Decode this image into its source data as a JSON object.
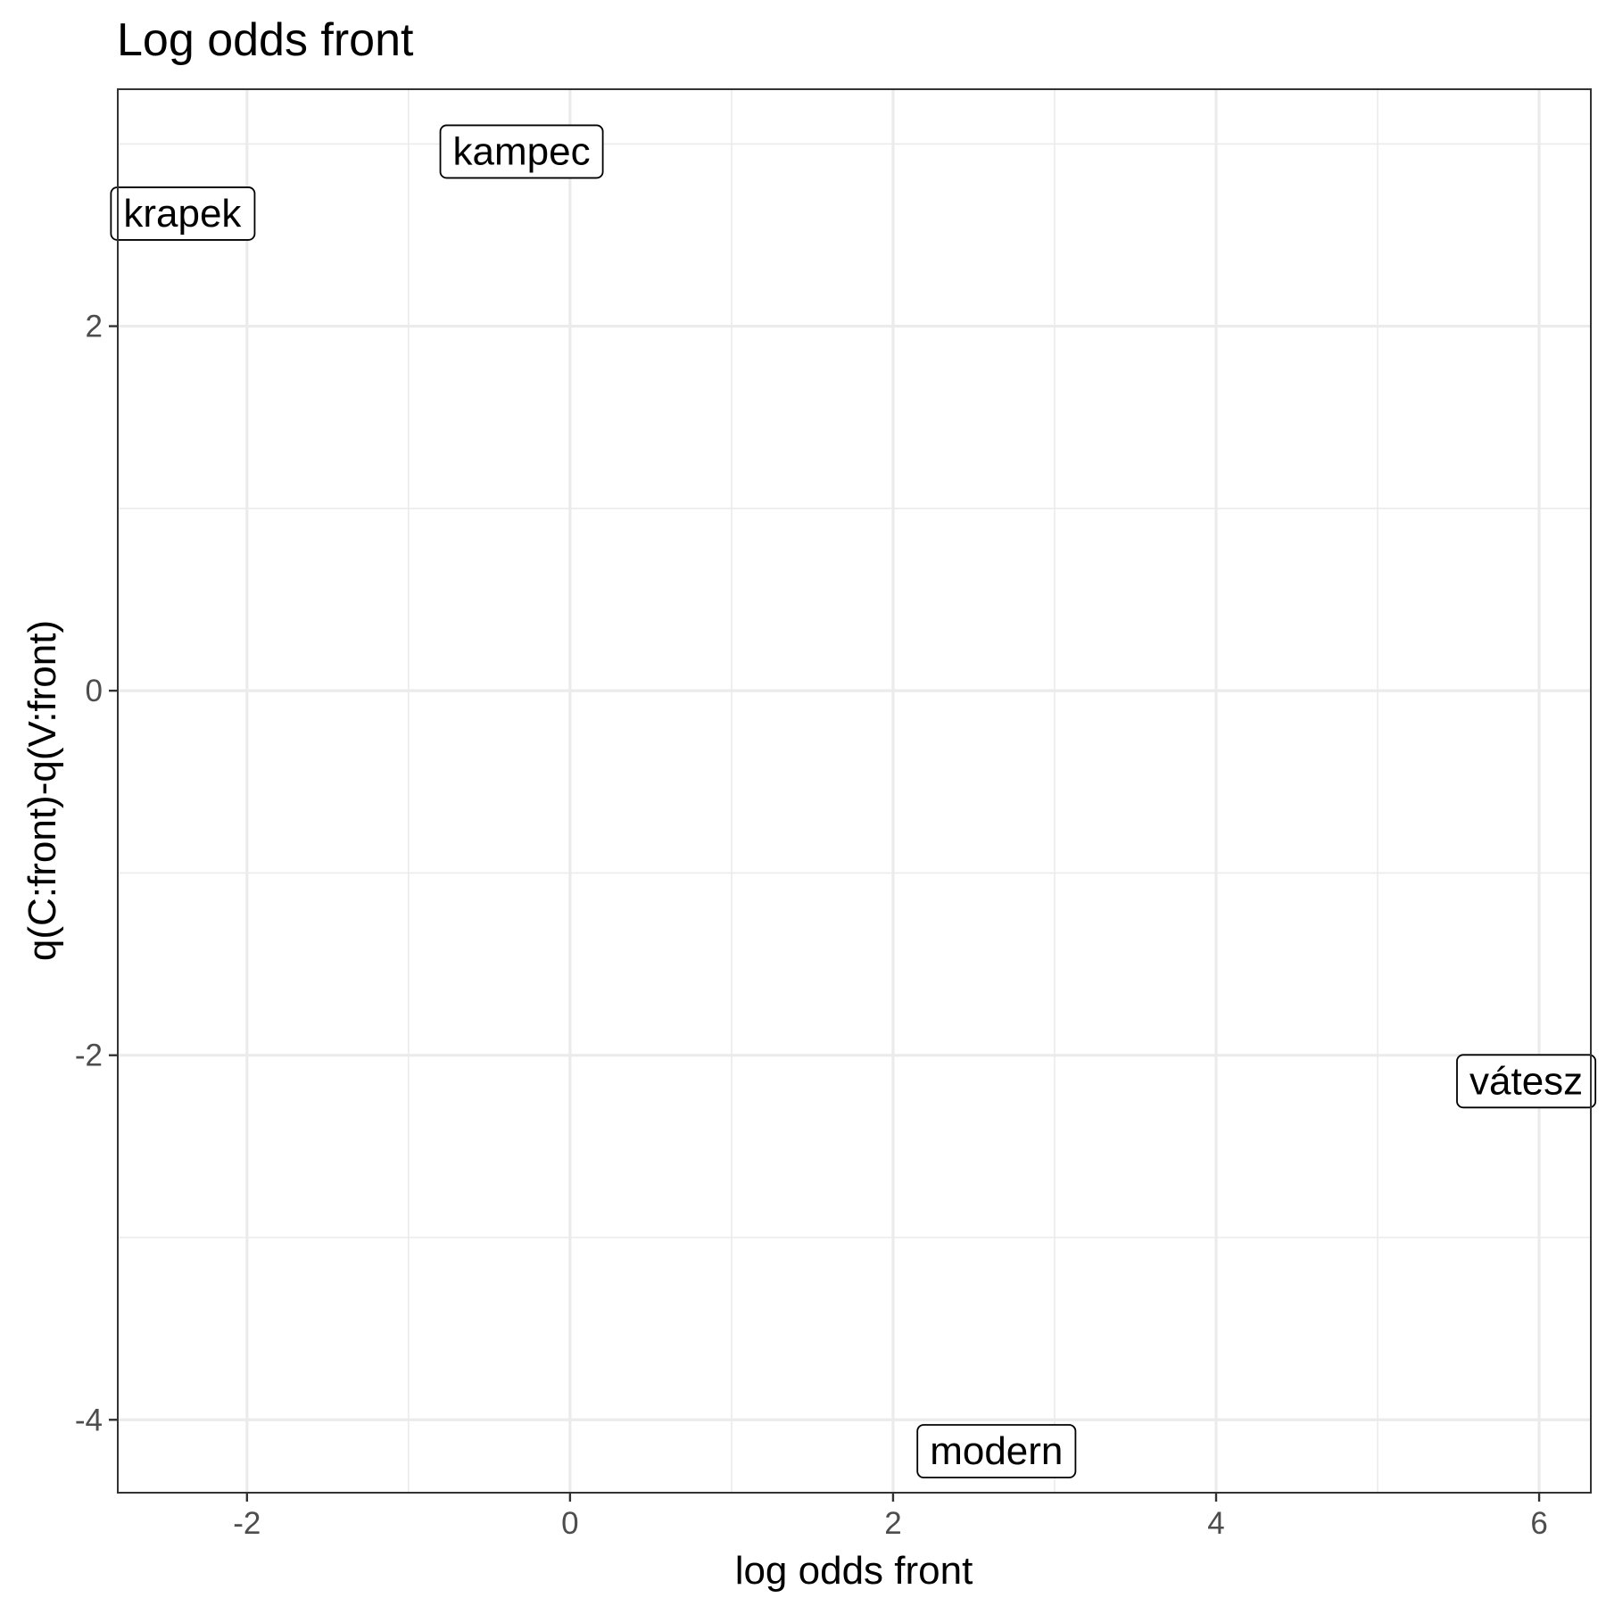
{
  "chart_data": {
    "type": "scatter",
    "title": "Log odds front",
    "xlabel": "log odds front",
    "ylabel": "q(C:front)-q(V:front)",
    "xlim": [
      -2.8,
      6.32
    ],
    "ylim": [
      -4.4,
      3.3
    ],
    "x_ticks": [
      -2,
      0,
      2,
      4,
      6
    ],
    "y_ticks": [
      -4,
      -2,
      0,
      2
    ],
    "x_tick_labels": [
      "-2",
      "0",
      "2",
      "4",
      "6"
    ],
    "y_tick_labels": [
      "-4",
      "-2",
      "0",
      "2"
    ],
    "grid": true,
    "points": [
      {
        "label": "kampec",
        "x": -0.3,
        "y": 2.96
      },
      {
        "label": "krapek",
        "x": -2.4,
        "y": 2.62
      },
      {
        "label": "vátesz",
        "x": 5.92,
        "y": -2.14
      },
      {
        "label": "modern",
        "x": 2.64,
        "y": -4.17
      }
    ]
  }
}
